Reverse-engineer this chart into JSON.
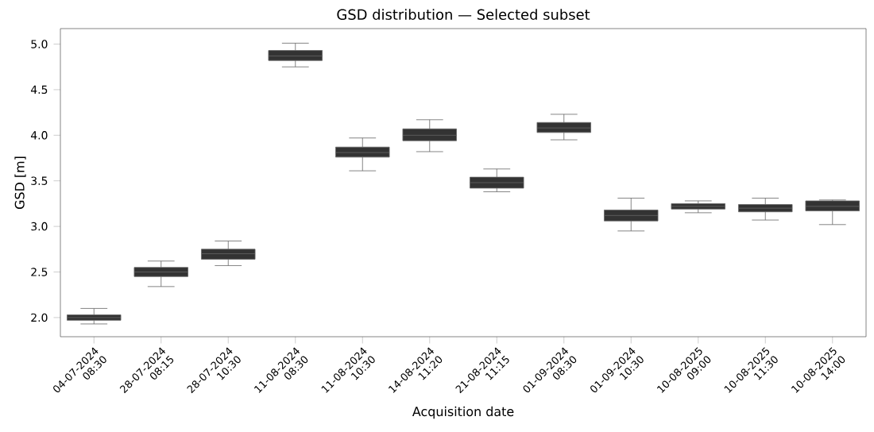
{
  "chart_data": {
    "type": "box",
    "title": "GSD distribution — Selected subset",
    "xlabel": "Acquisition date",
    "ylabel": "GSD [m]",
    "categories": [
      "04-07-2024 08:30",
      "28-07-2024 08:15",
      "28-07-2024 10:30",
      "11-08-2024 08:30",
      "11-08-2024 10:30",
      "14-08-2024 11:20",
      "21-08-2024 11:15",
      "01-09-2024 08:30",
      "01-09-2024 10:30",
      "10-08-2025 09:00",
      "10-08-2025 11:30",
      "10-08-2025 14:00"
    ],
    "color": "#333333",
    "boxes": [
      {
        "low": 1.93,
        "q1": 1.97,
        "median": 2.0,
        "q3": 2.03,
        "high": 2.1
      },
      {
        "low": 2.34,
        "q1": 2.45,
        "median": 2.5,
        "q3": 2.55,
        "high": 2.62
      },
      {
        "low": 2.57,
        "q1": 2.64,
        "median": 2.7,
        "q3": 2.75,
        "high": 2.84
      },
      {
        "low": 4.75,
        "q1": 4.82,
        "median": 4.87,
        "q3": 4.93,
        "high": 5.01
      },
      {
        "low": 3.61,
        "q1": 3.76,
        "median": 3.81,
        "q3": 3.87,
        "high": 3.97
      },
      {
        "low": 3.82,
        "q1": 3.94,
        "median": 4.0,
        "q3": 4.07,
        "high": 4.17
      },
      {
        "low": 3.38,
        "q1": 3.42,
        "median": 3.48,
        "q3": 3.54,
        "high": 3.63
      },
      {
        "low": 3.95,
        "q1": 4.03,
        "median": 4.08,
        "q3": 4.14,
        "high": 4.23
      },
      {
        "low": 2.95,
        "q1": 3.06,
        "median": 3.12,
        "q3": 3.18,
        "high": 3.31
      },
      {
        "low": 3.15,
        "q1": 3.19,
        "median": 3.22,
        "q3": 3.25,
        "high": 3.28
      },
      {
        "low": 3.07,
        "q1": 3.16,
        "median": 3.2,
        "q3": 3.24,
        "high": 3.31
      },
      {
        "low": 3.02,
        "q1": 3.17,
        "median": 3.22,
        "q3": 3.28,
        "high": 3.29
      }
    ],
    "ylim": [
      1.79,
      5.17
    ],
    "yticks": [
      {
        "value": 2,
        "label": "2.0"
      },
      {
        "value": 2.5,
        "label": "2.5"
      },
      {
        "value": 3,
        "label": "3.0"
      },
      {
        "value": 3.5,
        "label": "3.5"
      },
      {
        "value": 4,
        "label": "4.0"
      },
      {
        "value": 4.5,
        "label": "4.5"
      },
      {
        "value": 5,
        "label": "5.0"
      }
    ]
  }
}
